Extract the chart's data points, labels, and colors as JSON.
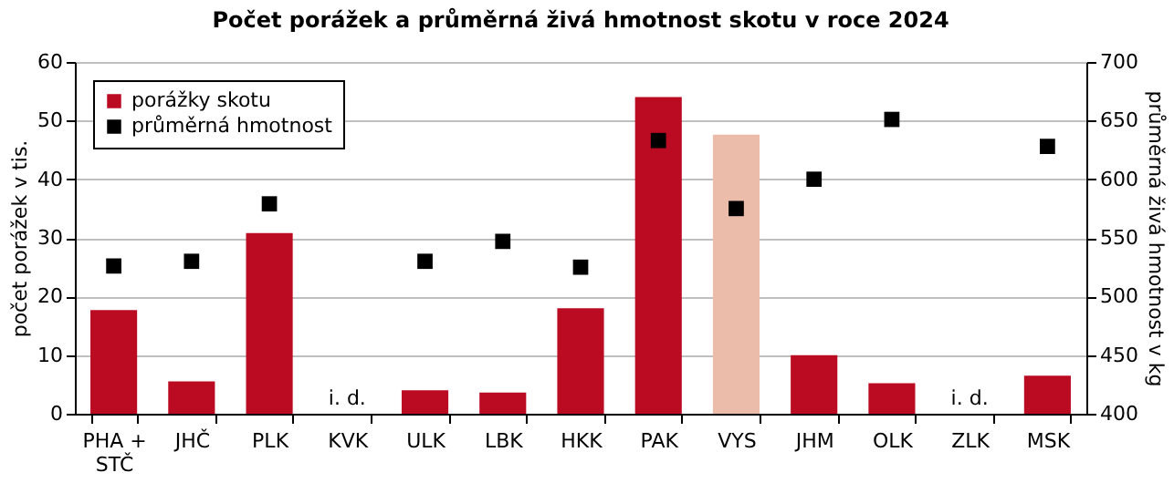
{
  "chart_data": {
    "type": "bar",
    "title": "Počet porážek a průměrná živá hmotnost skotu v roce 2024",
    "categories": [
      "PHA + STČ",
      "JHČ",
      "PLK",
      "KVK",
      "ULK",
      "LBK",
      "HKK",
      "PAK",
      "VYS",
      "JHM",
      "OLK",
      "ZLK",
      "MSK"
    ],
    "series": [
      {
        "name": "porážky skotu",
        "color": "#bb0b22",
        "colors": [
          "#bb0b22",
          "#bb0b22",
          "#bb0b22",
          "#bb0b22",
          "#bb0b22",
          "#bb0b22",
          "#bb0b22",
          "#bb0b22",
          "#ebbcaa",
          "#bb0b22",
          "#bb0b22",
          "#bb0b22",
          "#bb0b22"
        ],
        "values": [
          17.7,
          5.5,
          30.8,
          null,
          4,
          3.6,
          18,
          54,
          47.6,
          10,
          5.2,
          null,
          6.5
        ]
      },
      {
        "name": "průměrná hmotnost",
        "type": "scatter",
        "axis": "y2",
        "color": "#000000",
        "marker": "square",
        "values": [
          526,
          530,
          579,
          null,
          530,
          547,
          525,
          633,
          575,
          600,
          651,
          null,
          628
        ]
      }
    ],
    "ylabel": "počet porážek v tis.",
    "y2label": "průměrná živá hmotnost v kg",
    "ylim": [
      0,
      60
    ],
    "yticks": [
      0,
      10,
      20,
      30,
      40,
      50,
      60
    ],
    "y2lim": [
      400,
      700
    ],
    "y2ticks": [
      400,
      450,
      500,
      550,
      600,
      650,
      700
    ],
    "annotations": [
      "i. d.",
      "i. d."
    ],
    "grid": "y",
    "legend": "top left"
  }
}
